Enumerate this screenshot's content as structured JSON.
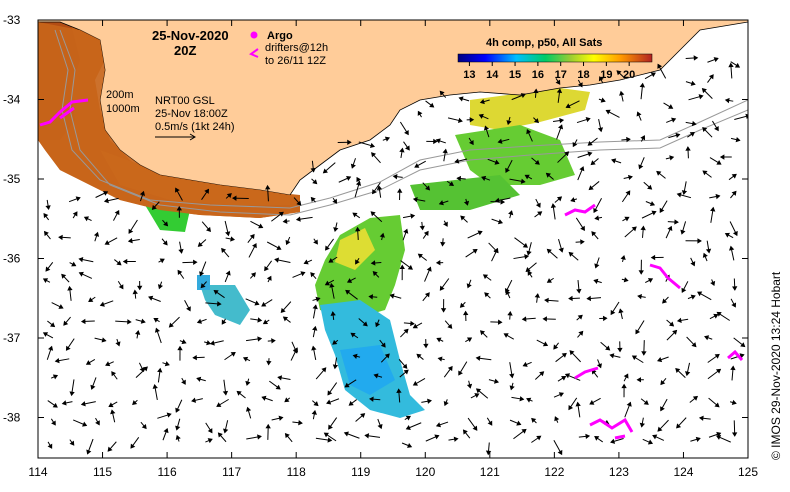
{
  "map": {
    "title_date": "25-Nov-2020",
    "title_hour": "20Z",
    "legend_argo": "Argo",
    "legend_drifters_line1": "drifters@12h",
    "legend_drifters_line2": "to 26/11 12Z",
    "contour_200": "200m",
    "contour_1000": "1000m",
    "source_line1": "NRT00 GSL",
    "source_line2": "25-Nov 18:00Z",
    "source_line3": "0.5m/s (1kt 24h)",
    "colorbar_title": "4h comp, p50, All Sats",
    "colorbar_ticks": [
      "13",
      "14",
      "15",
      "16",
      "17",
      "18",
      "19",
      "20"
    ],
    "colorbar_min": 12.5,
    "colorbar_max": 21,
    "lon_ticks": [
      "114",
      "115",
      "116",
      "117",
      "118",
      "119",
      "120",
      "121",
      "122",
      "123",
      "124",
      "125"
    ],
    "lat_ticks": [
      "-33",
      "-34",
      "-35",
      "-36",
      "-37",
      "-38"
    ],
    "credit": "© IMOS 29-Nov-2020 13:24 Hobart"
  },
  "colors": {
    "land": "#ffcc99",
    "argo": "#ff00ff",
    "contour": "#999999"
  }
}
